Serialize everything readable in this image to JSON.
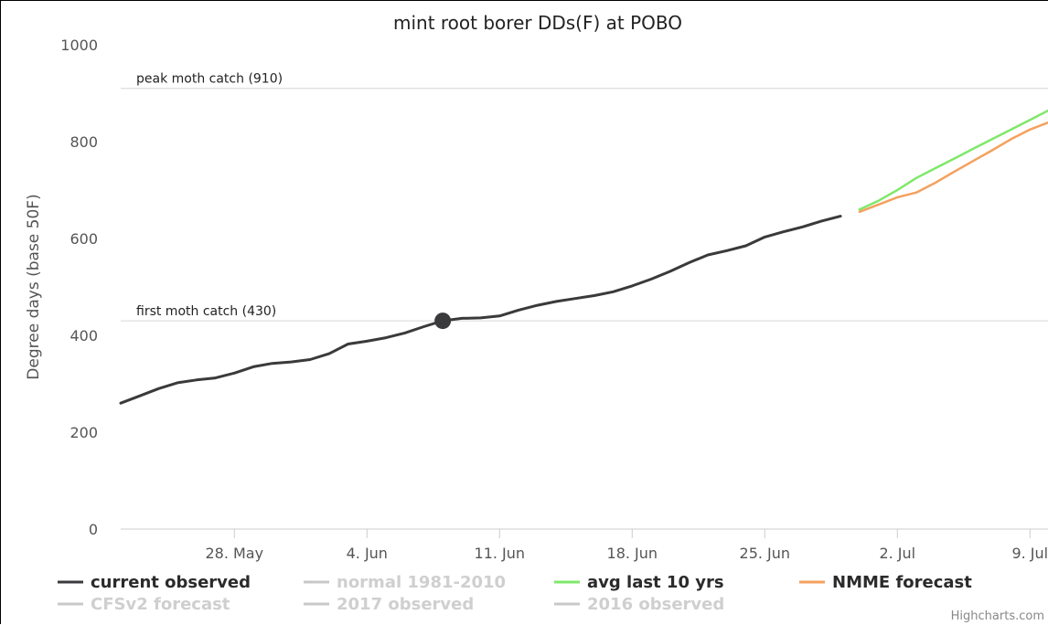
{
  "chart_data": {
    "type": "line",
    "title": "mint root borer DDs(F) at POBO",
    "ylabel": "Degree days (base 50F)",
    "xlabel": "",
    "ylim": [
      0,
      1000
    ],
    "yticks": [
      0,
      200,
      400,
      600,
      800,
      1000
    ],
    "xlim": [
      "2017-05-22",
      "2017-07-10"
    ],
    "xticks": [
      {
        "date": "2017-05-28",
        "label": "28. May"
      },
      {
        "date": "2017-06-04",
        "label": "4. Jun"
      },
      {
        "date": "2017-06-11",
        "label": "11. Jun"
      },
      {
        "date": "2017-06-18",
        "label": "18. Jun"
      },
      {
        "date": "2017-06-25",
        "label": "25. Jun"
      },
      {
        "date": "2017-07-02",
        "label": "2. Jul"
      },
      {
        "date": "2017-07-09",
        "label": "9. Jul"
      }
    ],
    "thresholds": [
      {
        "label": "peak moth catch (910)",
        "value": 910
      },
      {
        "label": "first moth catch (430)",
        "value": 430
      }
    ],
    "marker": {
      "date": "2017-06-08",
      "value": 430
    },
    "series": [
      {
        "name": "current observed",
        "color": "#3a3a3c",
        "points": [
          [
            "2017-05-22",
            260
          ],
          [
            "2017-05-23",
            275
          ],
          [
            "2017-05-24",
            290
          ],
          [
            "2017-05-25",
            302
          ],
          [
            "2017-05-26",
            308
          ],
          [
            "2017-05-27",
            312
          ],
          [
            "2017-05-28",
            322
          ],
          [
            "2017-05-29",
            335
          ],
          [
            "2017-05-30",
            342
          ],
          [
            "2017-05-31",
            345
          ],
          [
            "2017-06-01",
            350
          ],
          [
            "2017-06-02",
            362
          ],
          [
            "2017-06-03",
            382
          ],
          [
            "2017-06-04",
            388
          ],
          [
            "2017-06-05",
            395
          ],
          [
            "2017-06-06",
            405
          ],
          [
            "2017-06-07",
            418
          ],
          [
            "2017-06-08",
            430
          ],
          [
            "2017-06-09",
            435
          ],
          [
            "2017-06-10",
            436
          ],
          [
            "2017-06-11",
            440
          ],
          [
            "2017-06-12",
            452
          ],
          [
            "2017-06-13",
            462
          ],
          [
            "2017-06-14",
            470
          ],
          [
            "2017-06-15",
            476
          ],
          [
            "2017-06-16",
            482
          ],
          [
            "2017-06-17",
            490
          ],
          [
            "2017-06-18",
            502
          ],
          [
            "2017-06-19",
            516
          ],
          [
            "2017-06-20",
            532
          ],
          [
            "2017-06-21",
            550
          ],
          [
            "2017-06-22",
            566
          ],
          [
            "2017-06-23",
            575
          ],
          [
            "2017-06-24",
            585
          ],
          [
            "2017-06-25",
            603
          ],
          [
            "2017-06-26",
            614
          ],
          [
            "2017-06-27",
            624
          ],
          [
            "2017-06-28",
            636
          ],
          [
            "2017-06-29",
            646
          ]
        ]
      },
      {
        "name": "normal 1981-2010",
        "color": "#c8c8c8",
        "points": []
      },
      {
        "name": "avg last 10 yrs",
        "color": "#7fe86a",
        "points": [
          [
            "2017-06-30",
            660
          ],
          [
            "2017-07-01",
            678
          ],
          [
            "2017-07-02",
            700
          ],
          [
            "2017-07-03",
            725
          ],
          [
            "2017-07-04",
            745
          ],
          [
            "2017-07-05",
            765
          ],
          [
            "2017-07-06",
            785
          ],
          [
            "2017-07-07",
            805
          ],
          [
            "2017-07-08",
            825
          ],
          [
            "2017-07-09",
            845
          ],
          [
            "2017-07-10",
            865
          ]
        ]
      },
      {
        "name": "NMME forecast",
        "color": "#f4a15d",
        "points": [
          [
            "2017-06-30",
            655
          ],
          [
            "2017-07-01",
            670
          ],
          [
            "2017-07-02",
            685
          ],
          [
            "2017-07-03",
            695
          ],
          [
            "2017-07-04",
            715
          ],
          [
            "2017-07-05",
            738
          ],
          [
            "2017-07-06",
            760
          ],
          [
            "2017-07-07",
            782
          ],
          [
            "2017-07-08",
            805
          ],
          [
            "2017-07-09",
            825
          ],
          [
            "2017-07-10",
            840
          ]
        ]
      },
      {
        "name": "CFSv2 forecast",
        "color": "#c8c8c8",
        "points": []
      },
      {
        "name": "2017 observed",
        "color": "#c8c8c8",
        "points": []
      },
      {
        "name": "2016 observed",
        "color": "#c8c8c8",
        "points": []
      }
    ],
    "legend": [
      {
        "label": "current observed",
        "color": "#3a3a3c",
        "text_color": "#2b2b2b"
      },
      {
        "label": "normal 1981-2010",
        "color": "#c8c8c8",
        "text_color": "#cfcfcf"
      },
      {
        "label": "avg last 10 yrs",
        "color": "#7fe86a",
        "text_color": "#2b2b2b"
      },
      {
        "label": "NMME forecast",
        "color": "#f4a15d",
        "text_color": "#2b2b2b"
      },
      {
        "label": "CFSv2 forecast",
        "color": "#c8c8c8",
        "text_color": "#cfcfcf"
      },
      {
        "label": "2017 observed",
        "color": "#c8c8c8",
        "text_color": "#cfcfcf"
      },
      {
        "label": "2016 observed",
        "color": "#c8c8c8",
        "text_color": "#cfcfcf"
      }
    ],
    "legend_position": "bottom",
    "grid": false,
    "credit": "Highcharts.com"
  }
}
